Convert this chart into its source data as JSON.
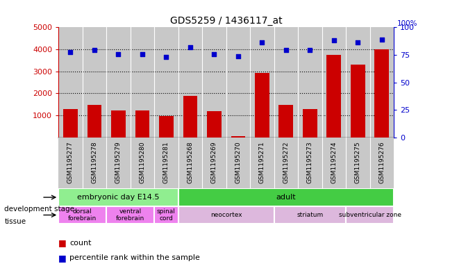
{
  "title": "GDS5259 / 1436117_at",
  "samples": [
    "GSM1195277",
    "GSM1195278",
    "GSM1195279",
    "GSM1195280",
    "GSM1195281",
    "GSM1195268",
    "GSM1195269",
    "GSM1195270",
    "GSM1195271",
    "GSM1195272",
    "GSM1195273",
    "GSM1195274",
    "GSM1195275",
    "GSM1195276"
  ],
  "counts": [
    1300,
    1480,
    1220,
    1230,
    980,
    1880,
    1190,
    50,
    2940,
    1460,
    1300,
    3760,
    3310,
    4000
  ],
  "percentiles": [
    3870,
    3980,
    3790,
    3780,
    3660,
    4080,
    3780,
    3690,
    4300,
    3980,
    3960,
    4420,
    4300,
    4430
  ],
  "ylim_left": [
    0,
    5000
  ],
  "ylim_right": [
    0,
    100
  ],
  "yticks_left": [
    1000,
    2000,
    3000,
    4000,
    5000
  ],
  "yticks_right": [
    0,
    25,
    50,
    75,
    100
  ],
  "bar_color": "#cc0000",
  "scatter_color": "#0000cc",
  "bg_color": "#c8c8c8",
  "development_stages": [
    {
      "label": "embryonic day E14.5",
      "start": 0,
      "end": 5,
      "color": "#90ee90"
    },
    {
      "label": "adult",
      "start": 5,
      "end": 14,
      "color": "#44cc44"
    }
  ],
  "tissues": [
    {
      "label": "dorsal\nforebrain",
      "start": 0,
      "end": 2,
      "color": "#ee82ee"
    },
    {
      "label": "ventral\nforebrain",
      "start": 2,
      "end": 4,
      "color": "#ee82ee"
    },
    {
      "label": "spinal\ncord",
      "start": 4,
      "end": 5,
      "color": "#ee82ee"
    },
    {
      "label": "neocortex",
      "start": 5,
      "end": 9,
      "color": "#ddb8dd"
    },
    {
      "label": "striatum",
      "start": 9,
      "end": 12,
      "color": "#ddb8dd"
    },
    {
      "label": "subventricular zone",
      "start": 12,
      "end": 14,
      "color": "#ddb8dd"
    }
  ]
}
